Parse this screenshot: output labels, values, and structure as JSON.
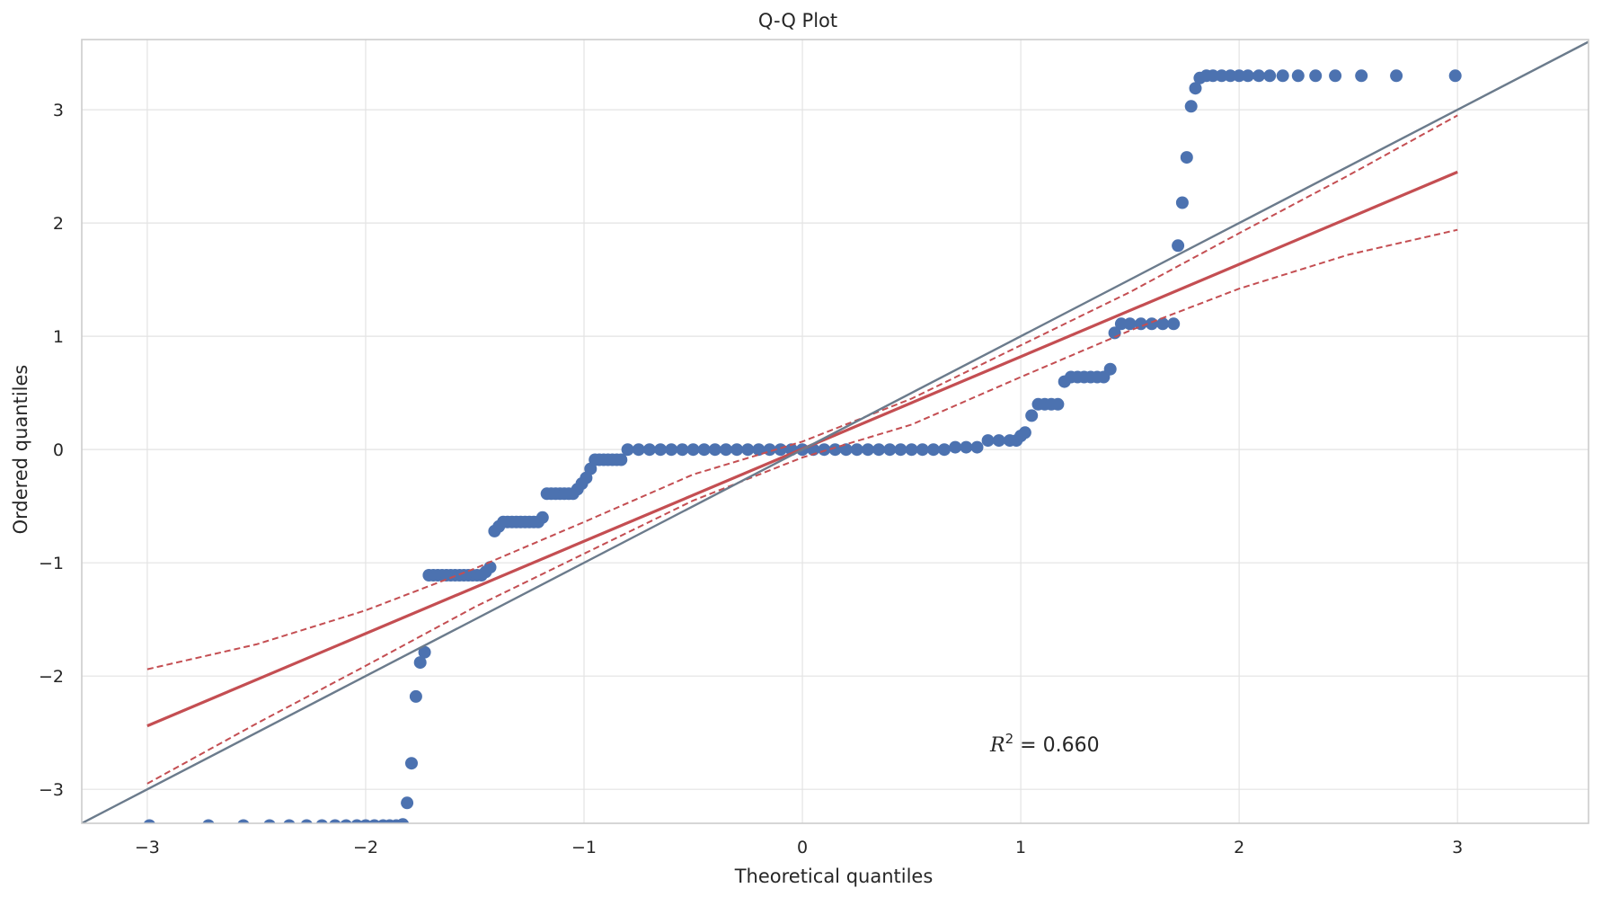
{
  "chart_data": {
    "type": "scatter",
    "title": "Q-Q Plot",
    "xlabel": "Theoretical quantiles",
    "ylabel": "Ordered quantiles",
    "xlim": [
      -3.3,
      3.6
    ],
    "ylim": [
      -3.3,
      3.62
    ],
    "xticks": [
      -3,
      -2,
      -1,
      0,
      1,
      2,
      3
    ],
    "yticks": [
      -3,
      -2,
      -1,
      0,
      1,
      2,
      3
    ],
    "xtick_labels": [
      "−3",
      "−2",
      "−1",
      "0",
      "1",
      "2",
      "3"
    ],
    "ytick_labels": [
      "−3",
      "−2",
      "−1",
      "0",
      "1",
      "2",
      "3"
    ],
    "grid": true,
    "annotation": {
      "prefix": "R",
      "sup": "2",
      "suffix": " = 0.660",
      "x": 0.86,
      "y": -2.6
    },
    "colors": {
      "points": "#4c72b0",
      "fit": "#c44e52",
      "reference": "#6b7b8c",
      "grid": "#e3e3e3",
      "frame": "#cccccc"
    },
    "series": [
      {
        "kind": "points",
        "x": [
          -2.99,
          -2.72,
          -2.56,
          -2.44,
          -2.35,
          -2.27,
          -2.2,
          -2.14,
          -2.09,
          -2.04,
          -2.0,
          -1.96,
          -1.92,
          -1.89,
          -1.86,
          -1.83,
          -1.81,
          -1.79,
          -1.77,
          -1.75,
          -1.73,
          -1.71,
          -1.69,
          -1.67,
          -1.65,
          -1.63,
          -1.61,
          -1.59,
          -1.57,
          -1.55,
          -1.53,
          -1.51,
          -1.49,
          -1.47,
          -1.45,
          -1.43,
          -1.41,
          -1.39,
          -1.37,
          -1.35,
          -1.33,
          -1.31,
          -1.29,
          -1.27,
          -1.25,
          -1.23,
          -1.21,
          -1.19,
          -1.17,
          -1.15,
          -1.13,
          -1.11,
          -1.09,
          -1.07,
          -1.05,
          -1.03,
          -1.01,
          -0.99,
          -0.97,
          -0.95,
          -0.93,
          -0.91,
          -0.89,
          -0.87,
          -0.85,
          -0.83,
          -0.8,
          -0.75,
          -0.7,
          -0.65,
          -0.6,
          -0.55,
          -0.5,
          -0.45,
          -0.4,
          -0.35,
          -0.3,
          -0.25,
          -0.2,
          -0.15,
          -0.1,
          -0.05,
          0.0,
          0.05,
          0.1,
          0.15,
          0.2,
          0.25,
          0.3,
          0.35,
          0.4,
          0.45,
          0.5,
          0.55,
          0.6,
          0.65,
          0.7,
          0.75,
          0.8,
          0.85,
          0.9,
          0.95,
          0.98,
          1.0,
          1.02,
          1.05,
          1.08,
          1.11,
          1.14,
          1.17,
          1.2,
          1.23,
          1.26,
          1.29,
          1.32,
          1.35,
          1.38,
          1.41,
          1.43,
          1.46,
          1.5,
          1.55,
          1.6,
          1.65,
          1.7,
          1.72,
          1.74,
          1.76,
          1.78,
          1.8,
          1.82,
          1.85,
          1.88,
          1.92,
          1.96,
          2.0,
          2.04,
          2.09,
          2.14,
          2.2,
          2.27,
          2.35,
          2.44,
          2.56,
          2.72,
          2.99
        ],
        "y": [
          -3.32,
          -3.32,
          -3.32,
          -3.32,
          -3.32,
          -3.32,
          -3.32,
          -3.32,
          -3.32,
          -3.32,
          -3.32,
          -3.32,
          -3.32,
          -3.32,
          -3.32,
          -3.31,
          -3.12,
          -2.77,
          -2.18,
          -1.88,
          -1.79,
          -1.11,
          -1.11,
          -1.11,
          -1.11,
          -1.11,
          -1.11,
          -1.11,
          -1.11,
          -1.11,
          -1.11,
          -1.11,
          -1.11,
          -1.11,
          -1.08,
          -1.04,
          -0.72,
          -0.68,
          -0.64,
          -0.64,
          -0.64,
          -0.64,
          -0.64,
          -0.64,
          -0.64,
          -0.64,
          -0.64,
          -0.6,
          -0.39,
          -0.39,
          -0.39,
          -0.39,
          -0.39,
          -0.39,
          -0.39,
          -0.35,
          -0.3,
          -0.25,
          -0.17,
          -0.09,
          -0.09,
          -0.09,
          -0.09,
          -0.09,
          -0.09,
          -0.09,
          0.0,
          0.0,
          0.0,
          0.0,
          0.0,
          0.0,
          0.0,
          0.0,
          0.0,
          0.0,
          0.0,
          0.0,
          0.0,
          0.0,
          0.0,
          0.0,
          0.0,
          0.0,
          0.0,
          0.0,
          0.0,
          0.0,
          0.0,
          0.0,
          0.0,
          0.0,
          0.0,
          0.0,
          0.0,
          0.0,
          0.02,
          0.02,
          0.02,
          0.08,
          0.08,
          0.08,
          0.08,
          0.12,
          0.15,
          0.3,
          0.4,
          0.4,
          0.4,
          0.4,
          0.6,
          0.64,
          0.64,
          0.64,
          0.64,
          0.64,
          0.64,
          0.71,
          1.03,
          1.11,
          1.11,
          1.11,
          1.11,
          1.11,
          1.11,
          1.8,
          2.18,
          2.58,
          3.03,
          3.19,
          3.28,
          3.3,
          3.3,
          3.3,
          3.3,
          3.3,
          3.3,
          3.3,
          3.3,
          3.3,
          3.3,
          3.3,
          3.3,
          3.3,
          3.3,
          3.3
        ]
      },
      {
        "kind": "fit-line",
        "x": [
          -3.0,
          3.0
        ],
        "y": [
          -2.44,
          2.45
        ]
      },
      {
        "kind": "confidence-upper",
        "x": [
          -3.0,
          -2.5,
          -2.0,
          -1.5,
          -1.0,
          -0.5,
          0.0,
          0.5,
          1.0,
          1.5,
          2.0,
          2.5,
          3.0
        ],
        "y": [
          -1.94,
          -1.72,
          -1.42,
          -1.05,
          -0.64,
          -0.22,
          0.07,
          0.45,
          0.92,
          1.39,
          1.91,
          2.42,
          2.95
        ]
      },
      {
        "kind": "confidence-lower",
        "x": [
          -3.0,
          -2.5,
          -2.0,
          -1.5,
          -1.0,
          -0.5,
          0.0,
          0.5,
          1.0,
          1.5,
          2.0,
          2.5,
          3.0
        ],
        "y": [
          -2.95,
          -2.42,
          -1.91,
          -1.39,
          -0.92,
          -0.45,
          -0.07,
          0.22,
          0.64,
          1.05,
          1.42,
          1.72,
          1.94
        ]
      },
      {
        "kind": "reference-line",
        "x": [
          -3.3,
          3.6
        ],
        "y": [
          -3.3,
          3.6
        ]
      }
    ]
  }
}
